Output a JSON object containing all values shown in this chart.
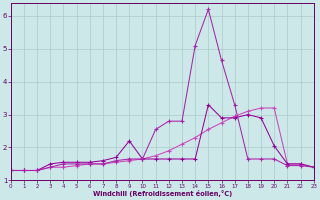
{
  "x": [
    0,
    1,
    2,
    3,
    4,
    5,
    6,
    7,
    8,
    9,
    10,
    11,
    12,
    13,
    14,
    15,
    16,
    17,
    18,
    19,
    20,
    21,
    22,
    23
  ],
  "line_peak": [
    1.3,
    1.3,
    1.3,
    1.4,
    1.5,
    1.5,
    1.5,
    1.5,
    1.6,
    1.65,
    1.65,
    2.55,
    2.8,
    2.8,
    5.1,
    6.2,
    4.65,
    3.3,
    1.65,
    1.65,
    1.65,
    1.45,
    1.45,
    1.4
  ],
  "line_mid": [
    1.3,
    1.3,
    1.3,
    1.5,
    1.55,
    1.55,
    1.55,
    1.6,
    1.7,
    2.2,
    1.65,
    1.65,
    1.65,
    1.65,
    1.65,
    3.3,
    2.9,
    2.9,
    3.0,
    2.9,
    2.05,
    1.5,
    1.5,
    1.4
  ],
  "line_ramp": [
    1.3,
    1.3,
    1.3,
    1.4,
    1.4,
    1.45,
    1.5,
    1.5,
    1.55,
    1.6,
    1.65,
    1.75,
    1.9,
    2.1,
    2.3,
    2.55,
    2.75,
    2.95,
    3.1,
    3.2,
    3.2,
    1.5,
    1.5,
    1.4
  ],
  "color_peak": "#aa22aa",
  "color_mid": "#990099",
  "color_ramp": "#cc44bb",
  "bg_color": "#cce8e8",
  "grid_color": "#aacccc",
  "tick_color": "#660066",
  "xlabel": "Windchill (Refroidissement éolien,°C)",
  "xlim": [
    0,
    23
  ],
  "ylim": [
    1.0,
    6.4
  ],
  "yticks": [
    1,
    2,
    3,
    4,
    5,
    6
  ],
  "xticks": [
    0,
    1,
    2,
    3,
    4,
    5,
    6,
    7,
    8,
    9,
    10,
    11,
    12,
    13,
    14,
    15,
    16,
    17,
    18,
    19,
    20,
    21,
    22,
    23
  ]
}
